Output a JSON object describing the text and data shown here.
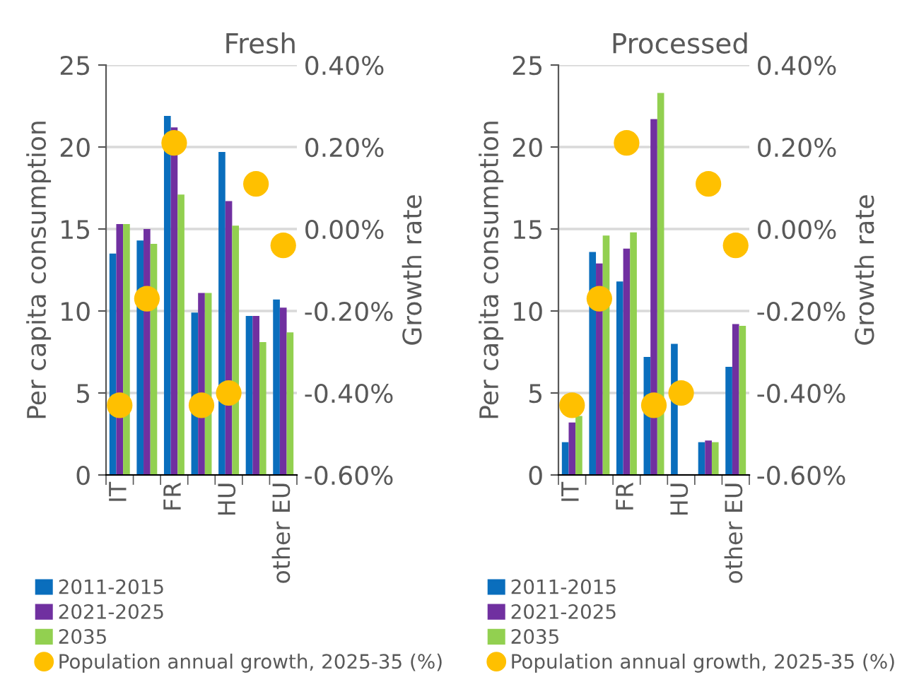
{
  "chart_data": [
    {
      "type": "bar",
      "title": "Fresh",
      "ylabel": "Per capita consumption",
      "y2label": "Growth rate",
      "categories": [
        "IT",
        null,
        "FR",
        null,
        "HU",
        null,
        "other EU"
      ],
      "series": [
        {
          "name": "2011-2015",
          "color": "#0a6ebd",
          "values": [
            13.5,
            14.3,
            21.9,
            9.9,
            19.7,
            9.7,
            10.7
          ]
        },
        {
          "name": "2021-2025",
          "color": "#7030a0",
          "values": [
            15.3,
            15.0,
            21.2,
            11.1,
            16.7,
            9.7,
            10.2
          ]
        },
        {
          "name": "2035",
          "color": "#92d050",
          "values": [
            15.3,
            14.1,
            17.1,
            11.1,
            15.2,
            8.1,
            8.7
          ]
        },
        {
          "name": "Population annual growth, 2025-35 (%)",
          "type": "scatter",
          "axis": "y2",
          "marker": "circle",
          "color": "#ffc000",
          "values": [
            -0.43,
            -0.17,
            0.21,
            -0.43,
            -0.4,
            0.11,
            -0.04
          ]
        }
      ],
      "ylim": [
        0,
        25
      ],
      "yticks": [
        0,
        5,
        10,
        15,
        20,
        25
      ],
      "y2lim": [
        -0.6,
        0.4
      ],
      "y2ticks": [
        {
          "value": -0.6,
          "label": "-0.60%"
        },
        {
          "value": -0.4,
          "label": "-0.40%"
        },
        {
          "value": -0.2,
          "label": "-0.20%"
        },
        {
          "value": 0,
          "label": "0.00%"
        },
        {
          "value": 0.2,
          "label": "0.20%"
        },
        {
          "value": 0.4,
          "label": "0.40%"
        }
      ],
      "grid": "y",
      "legend": "bottom"
    },
    {
      "type": "bar",
      "title": "Processed",
      "ylabel": "Per capita consumption",
      "y2label": "Growth rate",
      "categories": [
        "IT",
        null,
        "FR",
        null,
        "HU",
        null,
        "other EU"
      ],
      "series": [
        {
          "name": "2011-2015",
          "color": "#0a6ebd",
          "values": [
            2.0,
            13.6,
            11.8,
            7.2,
            8.0,
            2.0,
            6.6
          ]
        },
        {
          "name": "2021-2025",
          "color": "#7030a0",
          "values": [
            3.2,
            12.9,
            13.8,
            21.7,
            null,
            2.1,
            9.2
          ]
        },
        {
          "name": "2035",
          "color": "#92d050",
          "values": [
            3.6,
            14.6,
            14.8,
            23.3,
            null,
            2.0,
            9.1
          ]
        },
        {
          "name": "Population annual growth, 2025-35 (%)",
          "type": "scatter",
          "axis": "y2",
          "marker": "circle",
          "color": "#ffc000",
          "values": [
            -0.43,
            -0.17,
            0.21,
            -0.43,
            -0.4,
            0.11,
            -0.04
          ]
        }
      ],
      "ylim": [
        0,
        25
      ],
      "yticks": [
        0,
        5,
        10,
        15,
        20,
        25
      ],
      "y2lim": [
        -0.6,
        0.4
      ],
      "y2ticks": [
        {
          "value": -0.6,
          "label": "-0.60%"
        },
        {
          "value": -0.4,
          "label": "-0.40%"
        },
        {
          "value": -0.2,
          "label": "-0.20%"
        },
        {
          "value": 0,
          "label": "0.00%"
        },
        {
          "value": 0.2,
          "label": "0.20%"
        },
        {
          "value": 0.4,
          "label": "0.40%"
        }
      ],
      "grid": "y",
      "legend": "bottom"
    }
  ]
}
